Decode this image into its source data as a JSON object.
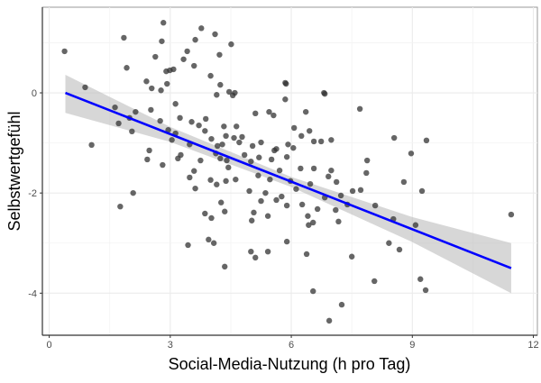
{
  "chart_data": {
    "type": "scatter",
    "title": "",
    "xlabel": "Social-Media-Nutzung (h pro Tag)",
    "ylabel": "Selbstwertgefühl",
    "xlim": [
      -0.17,
      12.1
    ],
    "ylim": [
      -4.84,
      1.71
    ],
    "xticks": [
      0,
      3,
      6,
      9,
      12
    ],
    "yticks": [
      0,
      -2,
      -4
    ],
    "xtick_labels": [
      "0",
      "3",
      "6",
      "9",
      "12"
    ],
    "ytick_labels": [
      "0",
      "-2",
      "-4"
    ],
    "grid": true,
    "colors": {
      "points": "#333333",
      "line": "#0000ff",
      "band": "#bdbdbd"
    },
    "points": [
      [
        0.38,
        0.83
      ],
      [
        0.89,
        0.11
      ],
      [
        1.05,
        -1.04
      ],
      [
        1.76,
        -2.27
      ],
      [
        2.08,
        -2.0
      ],
      [
        1.85,
        1.1
      ],
      [
        1.92,
        0.5
      ],
      [
        1.63,
        -0.29
      ],
      [
        1.72,
        -0.61
      ],
      [
        1.99,
        -0.5
      ],
      [
        2.05,
        -0.77
      ],
      [
        2.14,
        -0.38
      ],
      [
        2.43,
        -1.33
      ],
      [
        2.41,
        0.23
      ],
      [
        2.48,
        -1.15
      ],
      [
        2.52,
        -0.34
      ],
      [
        2.75,
        -0.56
      ],
      [
        2.63,
        0.72
      ],
      [
        2.79,
        1.03
      ],
      [
        2.83,
        1.4
      ],
      [
        2.9,
        0.43
      ],
      [
        2.99,
        0.45
      ],
      [
        2.92,
        0.18
      ],
      [
        3.08,
        0.47
      ],
      [
        2.95,
        -0.74
      ],
      [
        3.04,
        -0.94
      ],
      [
        3.13,
        -0.81
      ],
      [
        3.24,
        -0.5
      ],
      [
        3.33,
        0.67
      ],
      [
        3.13,
        -0.22
      ],
      [
        2.77,
        0.05
      ],
      [
        2.54,
        0.09
      ],
      [
        2.81,
        -1.44
      ],
      [
        3.42,
        0.83
      ],
      [
        3.53,
        -0.58
      ],
      [
        3.62,
        1.06
      ],
      [
        3.59,
        0.54
      ],
      [
        3.77,
        1.29
      ],
      [
        4.0,
        0.34
      ],
      [
        3.88,
        -0.52
      ],
      [
        3.86,
        -0.76
      ],
      [
        4.02,
        -0.92
      ],
      [
        4.11,
        1.17
      ],
      [
        4.24,
        0.16
      ],
      [
        4.15,
        -0.04
      ],
      [
        4.22,
        0.76
      ],
      [
        4.51,
        0.97
      ],
      [
        4.55,
        -0.05
      ],
      [
        4.6,
        0.0
      ],
      [
        4.46,
        0.02
      ],
      [
        4.64,
        -0.67
      ],
      [
        4.33,
        -0.67
      ],
      [
        4.38,
        -0.86
      ],
      [
        4.29,
        -1.03
      ],
      [
        4.13,
        -1.21
      ],
      [
        4.24,
        -1.31
      ],
      [
        4.4,
        -1.35
      ],
      [
        4.44,
        -1.49
      ],
      [
        4.58,
        -0.9
      ],
      [
        4.71,
        -0.99
      ],
      [
        4.78,
        -0.88
      ],
      [
        4.17,
        -1.06
      ],
      [
        3.71,
        -0.65
      ],
      [
        3.48,
        -1.03
      ],
      [
        3.26,
        -1.24
      ],
      [
        3.19,
        -1.31
      ],
      [
        3.75,
        -1.35
      ],
      [
        3.59,
        -1.56
      ],
      [
        3.48,
        -1.69
      ],
      [
        3.62,
        -1.91
      ],
      [
        4.0,
        -1.74
      ],
      [
        4.15,
        -1.83
      ],
      [
        4.26,
        -2.19
      ],
      [
        4.35,
        -2.37
      ],
      [
        3.86,
        -2.41
      ],
      [
        4.02,
        -2.5
      ],
      [
        3.44,
        -3.04
      ],
      [
        3.95,
        -2.93
      ],
      [
        4.08,
        -3.0
      ],
      [
        4.35,
        -3.47
      ],
      [
        4.38,
        -1.76
      ],
      [
        4.62,
        -1.73
      ],
      [
        4.96,
        -1.96
      ],
      [
        5.18,
        -1.65
      ],
      [
        5.47,
        -1.73
      ],
      [
        5.36,
        -2.0
      ],
      [
        5.25,
        -2.16
      ],
      [
        5.07,
        -2.39
      ],
      [
        5.02,
        -2.55
      ],
      [
        5.42,
        -2.46
      ],
      [
        5.0,
        -3.17
      ],
      [
        5.11,
        -3.29
      ],
      [
        5.42,
        -3.17
      ],
      [
        5.63,
        -2.14
      ],
      [
        5.76,
        -2.07
      ],
      [
        5.71,
        -1.55
      ],
      [
        5.51,
        -1.33
      ],
      [
        5.58,
        -1.15
      ],
      [
        5.2,
        -1.29
      ],
      [
        5.0,
        -1.37
      ],
      [
        4.84,
        -1.24
      ],
      [
        5.04,
        -1.06
      ],
      [
        5.25,
        -0.99
      ],
      [
        5.63,
        -1.12
      ],
      [
        5.92,
        -1.03
      ],
      [
        6.05,
        -1.1
      ],
      [
        6.25,
        -0.86
      ],
      [
        6.07,
        -0.7
      ],
      [
        6.36,
        -0.38
      ],
      [
        6.74,
        -0.97
      ],
      [
        5.87,
        0.18
      ],
      [
        5.85,
        -0.13
      ],
      [
        6.81,
        0.0
      ],
      [
        6.45,
        -0.76
      ],
      [
        5.56,
        -0.45
      ],
      [
        5.11,
        -0.41
      ],
      [
        5.45,
        -0.38
      ],
      [
        5.89,
        -1.28
      ],
      [
        6.23,
        -1.51
      ],
      [
        6.47,
        -1.82
      ],
      [
        6.56,
        -1.51
      ],
      [
        5.98,
        -1.76
      ],
      [
        6.12,
        -1.92
      ],
      [
        6.27,
        -2.23
      ],
      [
        6.41,
        -2.46
      ],
      [
        5.89,
        -2.25
      ],
      [
        6.43,
        -2.64
      ],
      [
        6.54,
        -2.59
      ],
      [
        6.65,
        -2.32
      ],
      [
        6.83,
        -2.09
      ],
      [
        6.92,
        -1.67
      ],
      [
        6.99,
        -1.55
      ],
      [
        7.12,
        -1.78
      ],
      [
        7.23,
        -2.05
      ],
      [
        7.39,
        -2.23
      ],
      [
        7.1,
        -2.34
      ],
      [
        7.17,
        -2.57
      ],
      [
        7.52,
        -1.96
      ],
      [
        7.72,
        -1.94
      ],
      [
        7.86,
        -1.6
      ],
      [
        8.08,
        -2.25
      ],
      [
        8.53,
        -2.52
      ],
      [
        8.79,
        -1.78
      ],
      [
        9.24,
        -1.96
      ],
      [
        9.08,
        -2.64
      ],
      [
        8.42,
        -3.0
      ],
      [
        8.68,
        -3.13
      ],
      [
        7.5,
        -3.27
      ],
      [
        6.38,
        -3.22
      ],
      [
        5.89,
        -2.97
      ],
      [
        6.54,
        -3.96
      ],
      [
        7.25,
        -4.23
      ],
      [
        6.94,
        -4.55
      ],
      [
        8.06,
        -3.76
      ],
      [
        9.2,
        -3.72
      ],
      [
        9.33,
        -3.94
      ],
      [
        11.45,
        -2.43
      ],
      [
        6.83,
        -0.02
      ],
      [
        7.7,
        -0.32
      ],
      [
        5.85,
        0.2
      ],
      [
        8.55,
        -0.9
      ],
      [
        9.35,
        -0.95
      ],
      [
        8.97,
        -1.21
      ],
      [
        7.88,
        -1.35
      ],
      [
        6.99,
        -0.94
      ],
      [
        6.56,
        -0.97
      ]
    ],
    "regression": {
      "x": [
        0.4,
        11.45
      ],
      "y": [
        0.0,
        -3.5
      ],
      "ci_x": [
        0.4,
        3,
        6,
        9,
        11.45
      ],
      "ci_upper": [
        0.36,
        -0.68,
        -1.68,
        -2.48,
        -3.0
      ],
      "ci_lower": [
        -0.4,
        -0.98,
        -1.88,
        -2.98,
        -4.0
      ]
    }
  }
}
